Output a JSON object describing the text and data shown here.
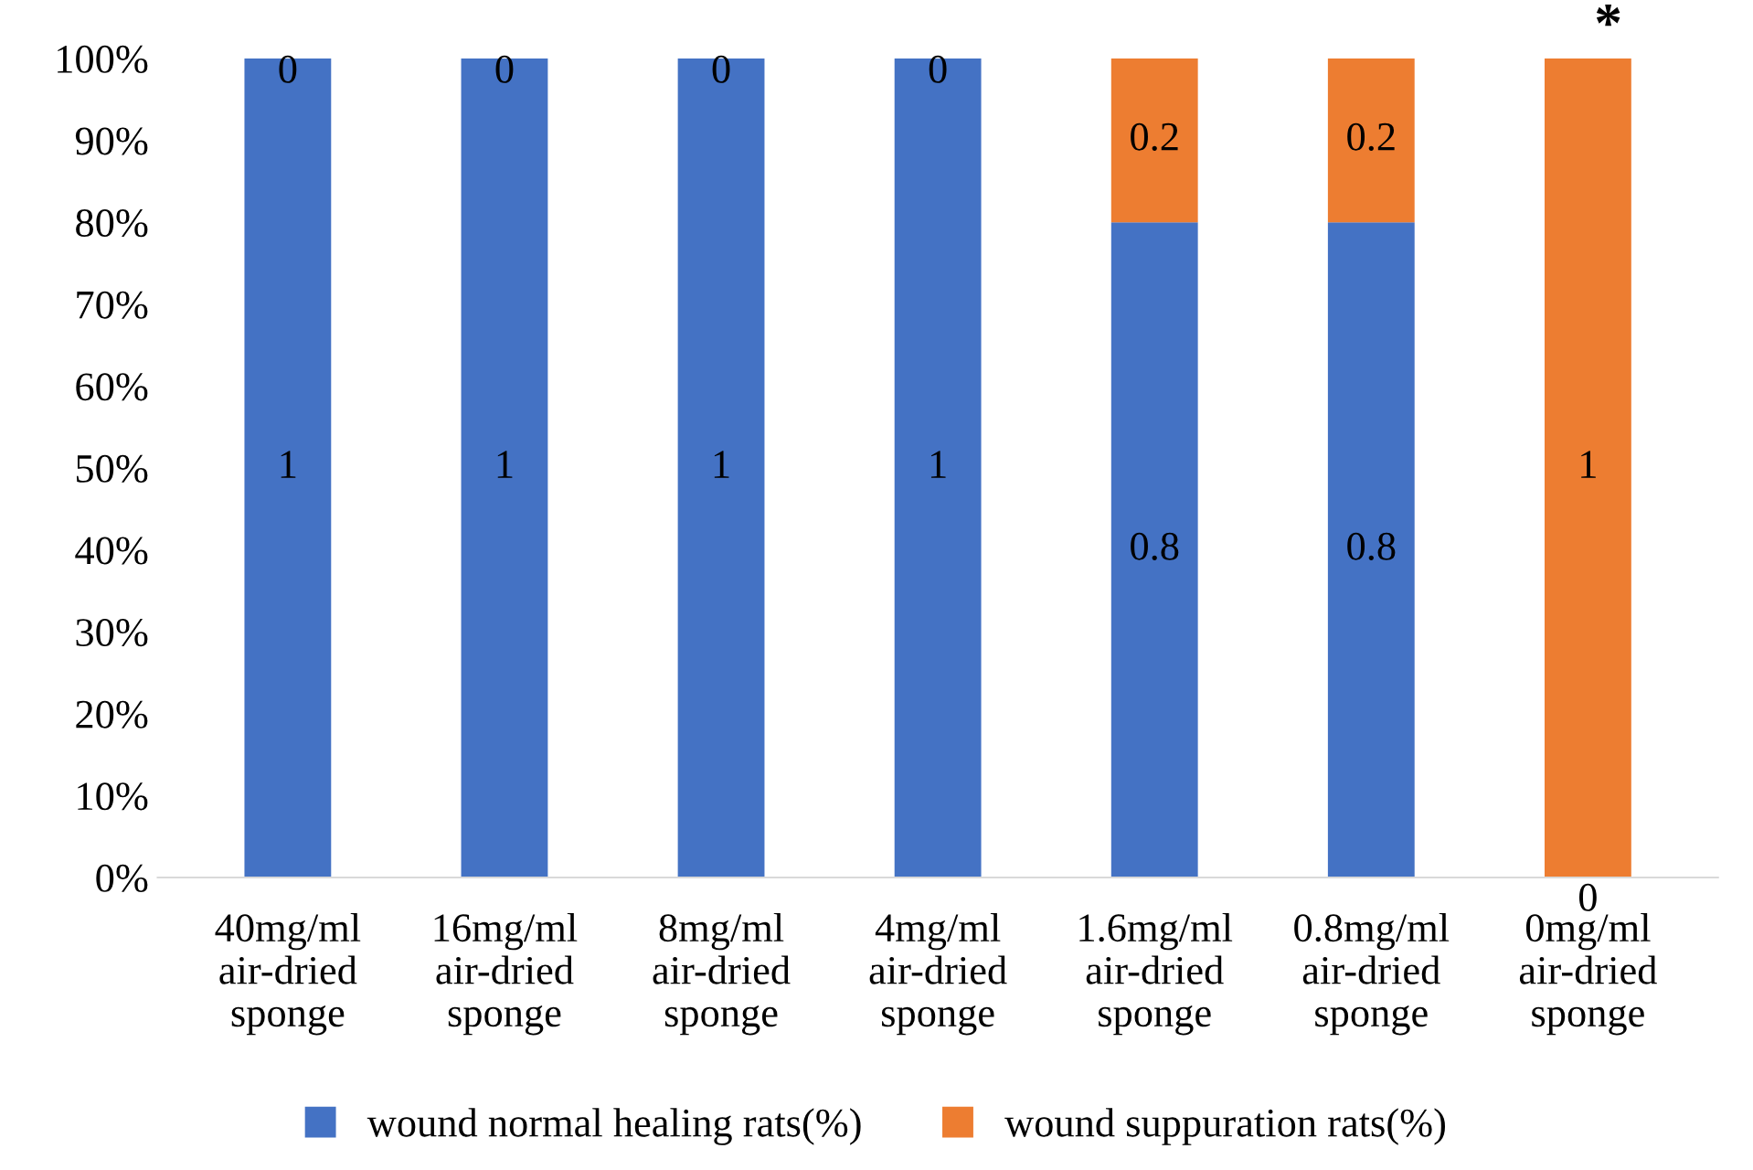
{
  "chart_data": {
    "type": "bar",
    "stacked": true,
    "categories": [
      "40mg/ml\nair-dried\nsponge",
      "16mg/ml\nair-dried\nsponge",
      "8mg/ml\nair-dried\nsponge",
      "4mg/ml\nair-dried\nsponge",
      "1.6mg/ml\nair-dried\nsponge",
      "0.8mg/ml\nair-dried\nsponge",
      "0mg/ml\nair-dried\nsponge"
    ],
    "series": [
      {
        "name": "wound normal healing rats(%)",
        "color": "#4472c4",
        "values": [
          1,
          1,
          1,
          1,
          0.8,
          0.8,
          0
        ],
        "value_labels": [
          "1",
          "1",
          "1",
          "1",
          "0.8",
          "0.8",
          null
        ]
      },
      {
        "name": "wound suppuration rats(%)",
        "color": "#ed7d31",
        "values": [
          0,
          0,
          0,
          0,
          0.2,
          0.2,
          1
        ],
        "value_labels": [
          "0",
          "0",
          "0",
          "0",
          "0.2",
          "0.2",
          "1"
        ]
      }
    ],
    "ylim": [
      0,
      1
    ],
    "yticks": [
      {
        "value": 0,
        "label": "0%"
      },
      {
        "value": 0.1,
        "label": "10%"
      },
      {
        "value": 0.2,
        "label": "20%"
      },
      {
        "value": 0.3,
        "label": "30%"
      },
      {
        "value": 0.4,
        "label": "40%"
      },
      {
        "value": 0.5,
        "label": "50%"
      },
      {
        "value": 0.6,
        "label": "60%"
      },
      {
        "value": 0.7,
        "label": "70%"
      },
      {
        "value": 0.8,
        "label": "80%"
      },
      {
        "value": 0.9,
        "label": "90%"
      },
      {
        "value": 1,
        "label": "100%"
      }
    ],
    "annotations": [
      {
        "text": "*",
        "x": "0mg/ml\nair-dried\nsponge",
        "y": 1
      },
      {
        "text": "0",
        "x": "0mg/ml\nair-dried\nsponge",
        "y": 0
      }
    ],
    "legend": "bottom",
    "grid": false
  }
}
